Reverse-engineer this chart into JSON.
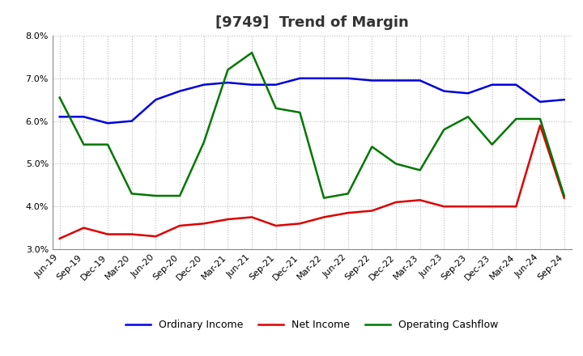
{
  "title": "[9749]  Trend of Margin",
  "x_labels": [
    "Jun-19",
    "Sep-19",
    "Dec-19",
    "Mar-20",
    "Jun-20",
    "Sep-20",
    "Dec-20",
    "Mar-21",
    "Jun-21",
    "Sep-21",
    "Dec-21",
    "Mar-22",
    "Jun-22",
    "Sep-22",
    "Dec-22",
    "Mar-23",
    "Jun-23",
    "Sep-23",
    "Dec-23",
    "Mar-24",
    "Jun-24",
    "Sep-24"
  ],
  "ordinary_income": [
    6.1,
    6.1,
    5.95,
    6.0,
    6.5,
    6.7,
    6.85,
    6.9,
    6.85,
    6.85,
    7.0,
    7.0,
    7.0,
    6.95,
    6.95,
    6.95,
    6.7,
    6.65,
    6.85,
    6.85,
    6.45,
    6.5
  ],
  "net_income": [
    3.25,
    3.5,
    3.35,
    3.35,
    3.3,
    3.55,
    3.6,
    3.7,
    3.75,
    3.55,
    3.6,
    3.75,
    3.85,
    3.9,
    4.1,
    4.15,
    4.0,
    4.0,
    4.0,
    4.0,
    5.9,
    4.2
  ],
  "operating_cashflow": [
    6.55,
    5.45,
    5.45,
    4.3,
    4.25,
    4.25,
    5.5,
    7.2,
    7.6,
    6.3,
    6.2,
    4.2,
    4.3,
    5.4,
    5.0,
    4.85,
    5.8,
    6.1,
    5.45,
    6.05,
    6.05,
    4.25
  ],
  "ylim": [
    3.0,
    8.0
  ],
  "yticks": [
    3.0,
    4.0,
    5.0,
    6.0,
    7.0,
    8.0
  ],
  "line_colors": {
    "ordinary_income": "#0000dd",
    "net_income": "#dd0000",
    "operating_cashflow": "#007700"
  },
  "line_width": 1.8,
  "legend_labels": [
    "Ordinary Income",
    "Net Income",
    "Operating Cashflow"
  ],
  "bg_color": "#ffffff",
  "plot_bg_color": "#ffffff",
  "grid_color": "#bbbbbb",
  "title_fontsize": 13,
  "tick_fontsize": 8,
  "legend_fontsize": 9
}
